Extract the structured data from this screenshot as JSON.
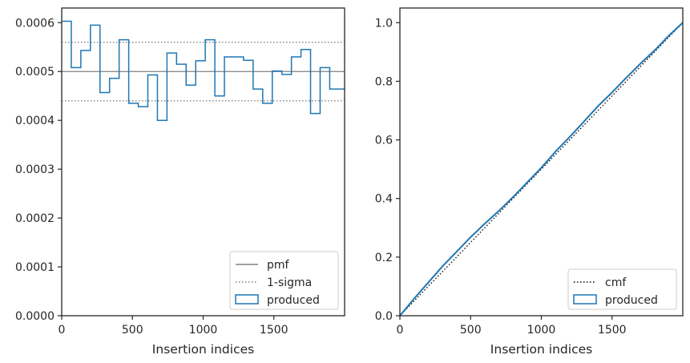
{
  "chart_data": [
    {
      "type": "line",
      "xlabel": "Insertion indices",
      "ylabel": "",
      "xlim": [
        0,
        2000
      ],
      "ylim": [
        0,
        0.00063
      ],
      "x_ticks": [
        0,
        500,
        1000,
        1500
      ],
      "x_tick_labels": [
        "0",
        "500",
        "1000",
        "1500"
      ],
      "y_ticks": [
        0,
        0.0001,
        0.0002,
        0.0003,
        0.0004,
        0.0005,
        0.0006
      ],
      "y_tick_labels": [
        "0.0000",
        "0.0001",
        "0.0002",
        "0.0003",
        "0.0004",
        "0.0005",
        "0.0006"
      ],
      "legend_position": "lower right",
      "series": [
        {
          "name": "pmf",
          "kind": "hline",
          "y": 0.0005,
          "color": "#808080",
          "style": "solid"
        },
        {
          "name": "1-sigma",
          "kind": "hlines",
          "y": [
            0.00044,
            0.00056
          ],
          "color": "#808080",
          "style": "dotted"
        },
        {
          "name": "produced",
          "kind": "step-histogram",
          "color": "#1f77b4",
          "bin_width": 67.7,
          "bin_edges": [
            0,
            67.7,
            135.3,
            203,
            270.7,
            338.3,
            406,
            473.7,
            541.3,
            609,
            676.7,
            744.3,
            812,
            879.7,
            947.3,
            1015,
            1082.7,
            1150.3,
            1218,
            1285.7,
            1353.3,
            1421,
            1488.7,
            1556.3,
            1624,
            1691.7,
            1759.3,
            1827,
            1894.7,
            1962.3,
            2030
          ],
          "values": [
            0.000603,
            0.000508,
            0.000543,
            0.000595,
            0.000457,
            0.000486,
            0.000565,
            0.000435,
            0.000428,
            0.000493,
            0.0004,
            0.000538,
            0.000515,
            0.000472,
            0.000522,
            0.000565,
            0.00045,
            0.00053,
            0.00053,
            0.000523,
            0.000464,
            0.000435,
            0.000501,
            0.000494,
            0.00053,
            0.000545,
            0.000414,
            0.000508,
            0.000464,
            0.000464
          ]
        }
      ]
    },
    {
      "type": "line",
      "xlabel": "Insertion indices",
      "ylabel": "",
      "xlim": [
        0,
        2000
      ],
      "ylim": [
        0,
        1.05
      ],
      "x_ticks": [
        0,
        500,
        1000,
        1500
      ],
      "x_tick_labels": [
        "0",
        "500",
        "1000",
        "1500"
      ],
      "y_ticks": [
        0,
        0.2,
        0.4,
        0.6,
        0.8,
        1.0
      ],
      "y_tick_labels": [
        "0.0",
        "0.2",
        "0.4",
        "0.6",
        "0.8",
        "1.0"
      ],
      "legend_position": "lower right",
      "series": [
        {
          "name": "cmf",
          "kind": "line",
          "color": "#000000",
          "style": "dotted",
          "x": [
            0,
            2000
          ],
          "y": [
            0,
            1.0
          ]
        },
        {
          "name": "produced",
          "kind": "step-line",
          "color": "#1f77b4",
          "x": [
            0,
            100,
            200,
            300,
            400,
            500,
            600,
            700,
            800,
            900,
            1000,
            1100,
            1200,
            1300,
            1400,
            1500,
            1600,
            1700,
            1800,
            1900,
            2000
          ],
          "y": [
            0,
            0.058,
            0.113,
            0.168,
            0.218,
            0.268,
            0.314,
            0.358,
            0.405,
            0.455,
            0.505,
            0.56,
            0.61,
            0.662,
            0.715,
            0.762,
            0.812,
            0.86,
            0.905,
            0.955,
            1.0
          ]
        }
      ]
    }
  ]
}
